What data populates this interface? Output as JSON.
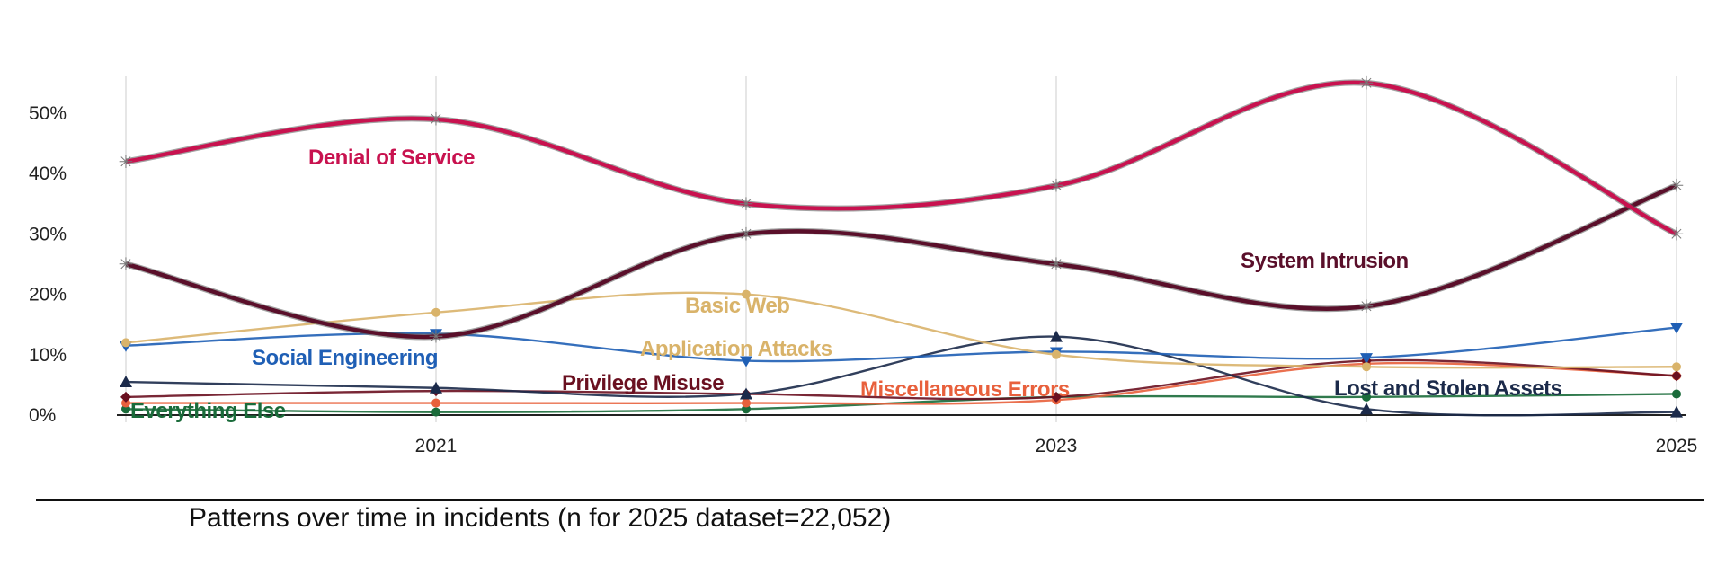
{
  "caption": "Patterns over time in incidents (n for 2025 dataset=22,052)",
  "chart_data": {
    "type": "line",
    "x": [
      2020,
      2021,
      2022,
      2023,
      2024,
      2025
    ],
    "x_tick_labels": [
      "2021",
      "2023",
      "2025"
    ],
    "y_tick_labels": [
      "0%",
      "10%",
      "20%",
      "30%",
      "40%",
      "50%"
    ],
    "ylim": [
      0,
      55
    ],
    "grid": "vertical lines at each year",
    "series": [
      {
        "name": "Denial of Service",
        "color": "#c8124f",
        "marker": "star",
        "values": [
          42,
          49,
          35,
          38,
          55,
          30
        ]
      },
      {
        "name": "System Intrusion",
        "color": "#5a0f2a",
        "marker": "star",
        "values": [
          25,
          13,
          30,
          25,
          18,
          38
        ]
      },
      {
        "name": "Basic Web Application Attacks",
        "color": "#d9b36a",
        "marker": "circle",
        "values": [
          12,
          17,
          20,
          10,
          8,
          8
        ]
      },
      {
        "name": "Social Engineering",
        "color": "#1f5fb5",
        "marker": "triangle-down",
        "values": [
          11.5,
          13.5,
          9,
          10.5,
          9.5,
          14.5
        ]
      },
      {
        "name": "Lost and Stolen Assets",
        "color": "#1b2a4a",
        "marker": "triangle-up",
        "values": [
          5.5,
          4.5,
          3.5,
          13,
          1,
          0.5
        ]
      },
      {
        "name": "Privilege Misuse",
        "color": "#6a1020",
        "marker": "diamond",
        "values": [
          3,
          4,
          3.5,
          3,
          9,
          6.5
        ]
      },
      {
        "name": "Miscellaneous Errors",
        "color": "#e8603c",
        "marker": "circle",
        "values": [
          2,
          2,
          2,
          2.5,
          8.5,
          6.5
        ]
      },
      {
        "name": "Everything Else",
        "color": "#1a6b3a",
        "marker": "circle",
        "values": [
          1,
          0.5,
          1,
          3,
          3,
          3.5
        ]
      }
    ],
    "labels": [
      {
        "text": "Denial of Service",
        "color": "#c8124f"
      },
      {
        "text": "System Intrusion",
        "color": "#5a0f2a"
      },
      {
        "text": "Basic Web",
        "color": "#d9b36a"
      },
      {
        "text": "Application Attacks",
        "color": "#d9b36a"
      },
      {
        "text": "Social Engineering",
        "color": "#1f5fb5"
      },
      {
        "text": "Privilege Misuse",
        "color": "#6a1020"
      },
      {
        "text": "Miscellaneous Errors",
        "color": "#e8603c"
      },
      {
        "text": "Lost and Stolen Assets",
        "color": "#1b2a4a"
      },
      {
        "text": "Everything Else",
        "color": "#1a6b3a"
      }
    ]
  }
}
